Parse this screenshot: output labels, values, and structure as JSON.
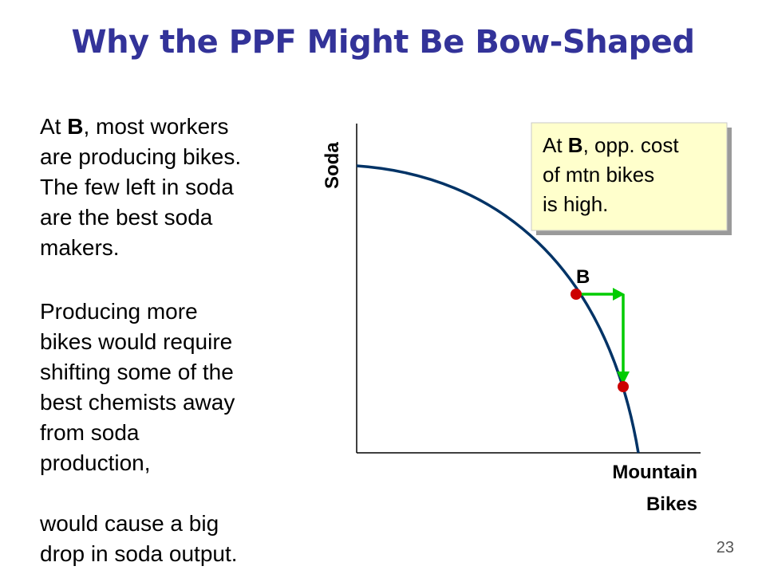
{
  "slide": {
    "title": "Why the PPF Might Be Bow-Shaped",
    "page_number": "23"
  },
  "left_text": {
    "para1": [
      {
        "parts": [
          "At ",
          "B",
          ", most workers"
        ]
      },
      {
        "text": "are producing bikes."
      },
      {
        "text": "The few left in soda"
      },
      {
        "text": "are the best soda"
      },
      {
        "text": "makers."
      }
    ],
    "para2": [
      "Producing more",
      "bikes would require",
      "shifting some of the",
      "best chemists away",
      "from soda",
      "production,"
    ],
    "para3": [
      "would cause a big",
      "drop in soda output."
    ]
  },
  "callout": {
    "line1_pre": "At ",
    "line1_bold": "B",
    "line1_post": ", opp. cost",
    "line2": "of mtn bikes",
    "line3": "is high."
  },
  "diagram": {
    "y_axis_label": "Soda",
    "x_axis_label_line1": "Mountain",
    "x_axis_label_line2": "Bikes",
    "point_label": "B",
    "colors": {
      "curve": "#003366",
      "arrow": "#00cc00",
      "points": "#cc0000",
      "title": "#333399",
      "callout_fill": "#ffffcc"
    }
  }
}
